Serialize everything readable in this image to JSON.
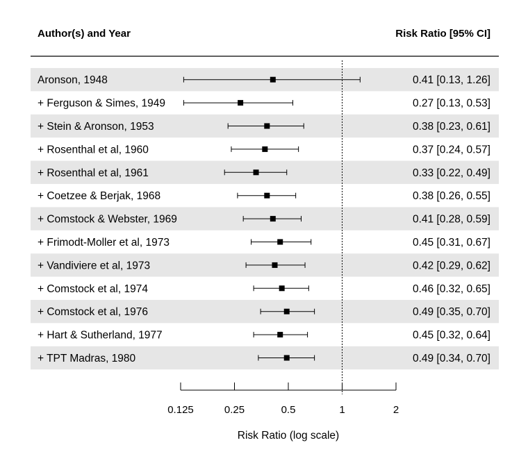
{
  "chart_data": {
    "type": "forest",
    "left_header": "Author(s) and Year",
    "right_header": "Risk Ratio [95% CI]",
    "xlabel": "Risk Ratio (log scale)",
    "x_scale": "log",
    "xlim": [
      0.125,
      2
    ],
    "x_ticks": [
      0.125,
      0.25,
      0.5,
      1,
      2
    ],
    "x_tick_labels": [
      "0.125",
      "0.25",
      "0.5",
      "1",
      "2"
    ],
    "reference_line": 1,
    "studies": [
      {
        "label": "Aronson, 1948",
        "rr": 0.41,
        "lower": 0.13,
        "upper": 1.26,
        "ci_text": "0.41 [0.13, 1.26]"
      },
      {
        "label": "+ Ferguson & Simes, 1949",
        "rr": 0.27,
        "lower": 0.13,
        "upper": 0.53,
        "ci_text": "0.27 [0.13, 0.53]"
      },
      {
        "label": "+ Stein & Aronson, 1953",
        "rr": 0.38,
        "lower": 0.23,
        "upper": 0.61,
        "ci_text": "0.38 [0.23, 0.61]"
      },
      {
        "label": "+ Rosenthal et al, 1960",
        "rr": 0.37,
        "lower": 0.24,
        "upper": 0.57,
        "ci_text": "0.37 [0.24, 0.57]"
      },
      {
        "label": "+ Rosenthal et al, 1961",
        "rr": 0.33,
        "lower": 0.22,
        "upper": 0.49,
        "ci_text": "0.33 [0.22, 0.49]"
      },
      {
        "label": "+ Coetzee & Berjak, 1968",
        "rr": 0.38,
        "lower": 0.26,
        "upper": 0.55,
        "ci_text": "0.38 [0.26, 0.55]"
      },
      {
        "label": "+ Comstock & Webster, 1969",
        "rr": 0.41,
        "lower": 0.28,
        "upper": 0.59,
        "ci_text": "0.41 [0.28, 0.59]"
      },
      {
        "label": "+ Frimodt-Moller et al, 1973",
        "rr": 0.45,
        "lower": 0.31,
        "upper": 0.67,
        "ci_text": "0.45 [0.31, 0.67]"
      },
      {
        "label": "+ Vandiviere et al, 1973",
        "rr": 0.42,
        "lower": 0.29,
        "upper": 0.62,
        "ci_text": "0.42 [0.29, 0.62]"
      },
      {
        "label": "+ Comstock et al, 1974",
        "rr": 0.46,
        "lower": 0.32,
        "upper": 0.65,
        "ci_text": "0.46 [0.32, 0.65]"
      },
      {
        "label": "+ Comstock et al, 1976",
        "rr": 0.49,
        "lower": 0.35,
        "upper": 0.7,
        "ci_text": "0.49 [0.35, 0.70]"
      },
      {
        "label": "+ Hart & Sutherland, 1977",
        "rr": 0.45,
        "lower": 0.32,
        "upper": 0.64,
        "ci_text": "0.45 [0.32, 0.64]"
      },
      {
        "label": "+ TPT Madras, 1980",
        "rr": 0.49,
        "lower": 0.34,
        "upper": 0.7,
        "ci_text": "0.49 [0.34, 0.70]"
      }
    ],
    "colors": {
      "stripe": "#e6e6e6",
      "ink": "#000000"
    }
  }
}
